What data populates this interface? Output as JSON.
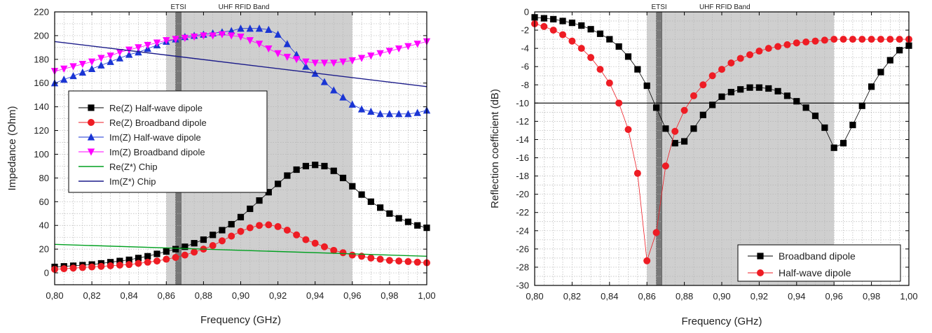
{
  "colors": {
    "black": "#000000",
    "red": "#ee1c24",
    "blue": "#1a35d4",
    "magenta": "#ff00ff",
    "green": "#00a020",
    "navy": "#1c1c8a",
    "band_fill": "#cfcfcf",
    "etsi_fill": "#777777",
    "grid": "#b5b5b5"
  },
  "chart_data": [
    {
      "type": "line",
      "xlabel": "Frequency (GHz)",
      "ylabel": "Impedance (Ohm)",
      "xlim": [
        0.8,
        1.0
      ],
      "ylim": [
        -10,
        220
      ],
      "x_ticks": [
        "0,80",
        "0,82",
        "0,84",
        "0,86",
        "0,88",
        "0,90",
        "0,92",
        "0,94",
        "0,96",
        "0,98",
        "1,00"
      ],
      "y_ticks": [
        "0",
        "20",
        "40",
        "60",
        "80",
        "100",
        "120",
        "140",
        "160",
        "180",
        "200",
        "220"
      ],
      "grid": true,
      "legend_position": "center-left",
      "bands": [
        {
          "label": "UHF RFID Band",
          "x0": 0.86,
          "x1": 0.96
        },
        {
          "label": "ETSI",
          "x0": 0.865,
          "x1": 0.868
        }
      ],
      "series": [
        {
          "name": "Re(Z) Half-wave dipole",
          "marker": "square",
          "color": "black",
          "x": [
            0.8,
            0.805,
            0.81,
            0.815,
            0.82,
            0.825,
            0.83,
            0.835,
            0.84,
            0.845,
            0.85,
            0.855,
            0.86,
            0.865,
            0.87,
            0.875,
            0.88,
            0.885,
            0.89,
            0.895,
            0.9,
            0.905,
            0.91,
            0.915,
            0.92,
            0.925,
            0.93,
            0.935,
            0.94,
            0.945,
            0.95,
            0.955,
            0.96,
            0.965,
            0.97,
            0.975,
            0.98,
            0.985,
            0.99,
            0.995,
            1.0
          ],
          "y": [
            5,
            5.5,
            6,
            6.5,
            7,
            8,
            9,
            10,
            11,
            12.5,
            14,
            16,
            18,
            20,
            22,
            25,
            28,
            32,
            36,
            41,
            47,
            54,
            61,
            68,
            75,
            82,
            87,
            90,
            91,
            90,
            86,
            80,
            73,
            66,
            60,
            55,
            50,
            46,
            43,
            40,
            38
          ]
        },
        {
          "name": "Re(Z) Broadband dipole",
          "marker": "circle",
          "color": "red",
          "x": [
            0.8,
            0.805,
            0.81,
            0.815,
            0.82,
            0.825,
            0.83,
            0.835,
            0.84,
            0.845,
            0.85,
            0.855,
            0.86,
            0.865,
            0.87,
            0.875,
            0.88,
            0.885,
            0.89,
            0.895,
            0.9,
            0.905,
            0.91,
            0.915,
            0.92,
            0.925,
            0.93,
            0.935,
            0.94,
            0.945,
            0.95,
            0.955,
            0.96,
            0.965,
            0.97,
            0.975,
            0.98,
            0.985,
            0.99,
            0.995,
            1.0
          ],
          "y": [
            3,
            3.5,
            4,
            4.5,
            5,
            5.5,
            6,
            6.5,
            7,
            8,
            9,
            10,
            11.5,
            13,
            15,
            17.5,
            20,
            23,
            27,
            31,
            35,
            38,
            40,
            40.5,
            39,
            36,
            32,
            28,
            25,
            22,
            19,
            17,
            15,
            14,
            12.5,
            11.5,
            10.5,
            10,
            9.5,
            9,
            8.5
          ]
        },
        {
          "name": "Im(Z) Half-wave dipole",
          "marker": "triangle-up",
          "color": "blue",
          "x": [
            0.8,
            0.805,
            0.81,
            0.815,
            0.82,
            0.825,
            0.83,
            0.835,
            0.84,
            0.845,
            0.85,
            0.855,
            0.86,
            0.865,
            0.87,
            0.875,
            0.88,
            0.885,
            0.89,
            0.895,
            0.9,
            0.905,
            0.91,
            0.915,
            0.92,
            0.925,
            0.93,
            0.935,
            0.94,
            0.945,
            0.95,
            0.955,
            0.96,
            0.965,
            0.97,
            0.975,
            0.98,
            0.985,
            0.99,
            0.995,
            1.0
          ],
          "y": [
            160,
            163,
            166,
            169,
            172,
            175,
            178,
            181,
            184,
            186,
            189,
            192,
            195,
            197,
            199,
            200,
            201,
            202,
            203,
            204,
            206,
            206,
            206,
            205,
            201,
            193,
            184,
            174,
            168,
            161,
            154,
            148,
            142,
            138,
            136,
            134,
            134,
            134,
            134,
            135,
            137
          ]
        },
        {
          "name": "Im(Z) Broadband dipole",
          "marker": "triangle-down",
          "color": "magenta",
          "x": [
            0.8,
            0.805,
            0.81,
            0.815,
            0.82,
            0.825,
            0.83,
            0.835,
            0.84,
            0.845,
            0.85,
            0.855,
            0.86,
            0.865,
            0.87,
            0.875,
            0.88,
            0.885,
            0.89,
            0.895,
            0.9,
            0.905,
            0.91,
            0.915,
            0.92,
            0.925,
            0.93,
            0.935,
            0.94,
            0.945,
            0.95,
            0.955,
            0.96,
            0.965,
            0.97,
            0.975,
            0.98,
            0.985,
            0.99,
            0.995,
            1.0
          ],
          "y": [
            170,
            172,
            174,
            176,
            178,
            181,
            183,
            186,
            188,
            190,
            192,
            194,
            196,
            197,
            198,
            199,
            200,
            200,
            201,
            200,
            199,
            196,
            193,
            189,
            185,
            182,
            180,
            178,
            177,
            177,
            177,
            178,
            179,
            181,
            183,
            185,
            187,
            189,
            191,
            193,
            195
          ]
        },
        {
          "name": "Re(Z*) Chip",
          "marker": "none",
          "color": "green",
          "x": [
            0.8,
            1.0
          ],
          "y": [
            24,
            14
          ]
        },
        {
          "name": "Im(Z*) Chip",
          "marker": "none",
          "color": "navy",
          "x": [
            0.8,
            1.0
          ],
          "y": [
            195,
            157
          ]
        }
      ]
    },
    {
      "type": "line",
      "xlabel": "Frequency (GHz)",
      "ylabel": "Reflection coefficient (dB)",
      "xlim": [
        0.8,
        1.0
      ],
      "ylim": [
        -30,
        0
      ],
      "x_ticks": [
        "0,80",
        "0,82",
        "0,84",
        "0,86",
        "0,88",
        "0,90",
        "0,92",
        "0,94",
        "0,96",
        "0,98",
        "1,00"
      ],
      "y_ticks": [
        "0",
        "-2",
        "-4",
        "-6",
        "-8",
        "-10",
        "-12",
        "-14",
        "-16",
        "-18",
        "-20",
        "-22",
        "-24",
        "-26",
        "-28",
        "-30"
      ],
      "grid": true,
      "legend_position": "bottom-right",
      "reference_line": -10,
      "bands": [
        {
          "label": "UHF RFID Band",
          "x0": 0.86,
          "x1": 0.96
        },
        {
          "label": "ETSI",
          "x0": 0.865,
          "x1": 0.868
        }
      ],
      "series": [
        {
          "name": "Broadband dipole",
          "marker": "square",
          "color": "black",
          "x": [
            0.8,
            0.805,
            0.81,
            0.815,
            0.82,
            0.825,
            0.83,
            0.835,
            0.84,
            0.845,
            0.85,
            0.855,
            0.86,
            0.865,
            0.87,
            0.875,
            0.88,
            0.885,
            0.89,
            0.895,
            0.9,
            0.905,
            0.91,
            0.915,
            0.92,
            0.925,
            0.93,
            0.935,
            0.94,
            0.945,
            0.95,
            0.955,
            0.96,
            0.965,
            0.97,
            0.975,
            0.98,
            0.985,
            0.99,
            0.995,
            1.0
          ],
          "y": [
            -0.6,
            -0.7,
            -0.8,
            -1.0,
            -1.2,
            -1.5,
            -1.9,
            -2.4,
            -3.0,
            -3.8,
            -4.9,
            -6.3,
            -8.1,
            -10.5,
            -12.8,
            -14.4,
            -14.2,
            -12.8,
            -11.3,
            -10.2,
            -9.3,
            -8.8,
            -8.5,
            -8.3,
            -8.3,
            -8.4,
            -8.7,
            -9.2,
            -9.8,
            -10.5,
            -11.4,
            -12.7,
            -14.9,
            -14.4,
            -12.4,
            -10.3,
            -8.2,
            -6.6,
            -5.3,
            -4.2,
            -3.7
          ]
        },
        {
          "name": "Half-wave dipole",
          "marker": "circle",
          "color": "red",
          "x": [
            0.8,
            0.805,
            0.81,
            0.815,
            0.82,
            0.825,
            0.83,
            0.835,
            0.84,
            0.845,
            0.85,
            0.855,
            0.86,
            0.865,
            0.87,
            0.875,
            0.88,
            0.885,
            0.89,
            0.895,
            0.9,
            0.905,
            0.91,
            0.915,
            0.92,
            0.925,
            0.93,
            0.935,
            0.94,
            0.945,
            0.95,
            0.955,
            0.96,
            0.965,
            0.97,
            0.975,
            0.98,
            0.985,
            0.99,
            0.995,
            1.0
          ],
          "y": [
            -1.3,
            -1.6,
            -2.0,
            -2.5,
            -3.2,
            -4.0,
            -5.0,
            -6.3,
            -7.8,
            -10.0,
            -12.9,
            -17.7,
            -27.3,
            -24.2,
            -16.9,
            -13.1,
            -10.8,
            -9.2,
            -8.0,
            -7.0,
            -6.3,
            -5.6,
            -5.1,
            -4.7,
            -4.3,
            -4.0,
            -3.8,
            -3.6,
            -3.4,
            -3.3,
            -3.2,
            -3.1,
            -3.0,
            -3.0,
            -3.0,
            -3.0,
            -3.0,
            -3.0,
            -3.0,
            -3.0,
            -3.0
          ]
        }
      ]
    }
  ]
}
